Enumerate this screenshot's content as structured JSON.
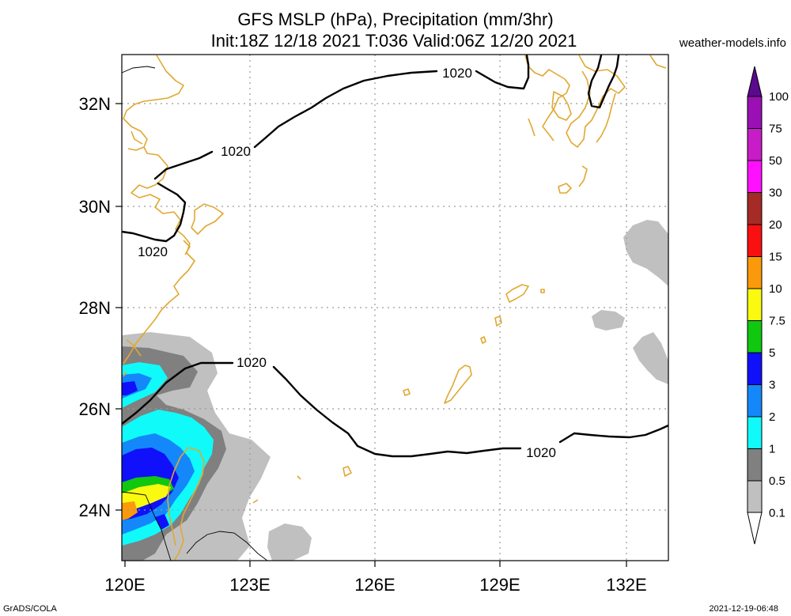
{
  "title": {
    "line1": "GFS MSLP (hPa), Precipitation (mm/3hr)",
    "line2": "Init:18Z 12/18 2021 T:036 Valid:06Z 12/20 2021"
  },
  "site": "weather-models.info",
  "footer": {
    "left": "GrADS/COLA",
    "right": "2021-12-19-06:48"
  },
  "map": {
    "lon_range": [
      120,
      133
    ],
    "lat_range": [
      23,
      33
    ],
    "x_ticks": [
      "120E",
      "123E",
      "126E",
      "129E",
      "132E"
    ],
    "y_ticks": [
      "32N",
      "30N",
      "28N",
      "26N",
      "24N"
    ],
    "isobar_labels": [
      "1020",
      "1020",
      "1020",
      "1020",
      "1020"
    ]
  },
  "colorbar": {
    "labels": [
      "100",
      "75",
      "50",
      "30",
      "20",
      "15",
      "10",
      "7.5",
      "5",
      "3",
      "2",
      "1",
      "0.5",
      "0.1"
    ],
    "colors": [
      "#5a0a8c",
      "#9a10b4",
      "#c81cc8",
      "#ff10ff",
      "#a62a26",
      "#fa1010",
      "#fa9a0a",
      "#fafa10",
      "#10c810",
      "#1010fa",
      "#1488fa",
      "#10fafa",
      "#808080",
      "#c0c0c0"
    ]
  }
}
